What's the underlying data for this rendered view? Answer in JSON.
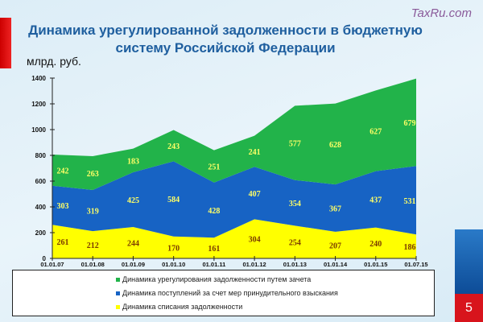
{
  "watermark": "TaxRu.com",
  "page_number": "5",
  "chart_data": {
    "type": "area",
    "stacked": true,
    "title": "Динамика урегулированной задолженности  в бюджетную систему Российской Федерации",
    "ylabel": "млрд. руб.",
    "ylim": [
      0,
      1400
    ],
    "yticks": [
      0,
      200,
      400,
      600,
      800,
      1000,
      1200,
      1400
    ],
    "categories": [
      "01.01.07",
      "01.01.08",
      "01.01.09",
      "01.01.10",
      "01.01.11",
      "01.01.12",
      "01.01.13",
      "01.01.14",
      "01.01.15",
      "01.07.15"
    ],
    "legend_position": "bottom",
    "series": [
      {
        "name": "Динамика  списания  задолженности",
        "color": "#ffff00",
        "label_color": "#7a3a00",
        "values": [
          261,
          212,
          244,
          170,
          161,
          304,
          254,
          207,
          240,
          186
        ]
      },
      {
        "name": "Динамика  поступлений  за счет мер принудительного  взыскания",
        "color": "#1763c4",
        "label_color": "#ffff66",
        "values": [
          303,
          319,
          425,
          584,
          428,
          407,
          354,
          367,
          437,
          531
        ]
      },
      {
        "name": "Динамика  урегулирования   задолженности  путем  зачета",
        "color": "#22b34a",
        "label_color": "#ffff66",
        "values": [
          242,
          263,
          183,
          243,
          251,
          241,
          577,
          628,
          627,
          679
        ]
      }
    ]
  }
}
